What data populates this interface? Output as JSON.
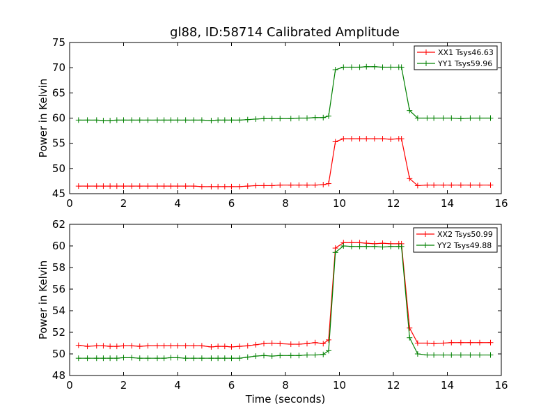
{
  "chart_data": [
    {
      "type": "line",
      "title": "gl88, ID:58714 Calibrated Amplitude",
      "xlabel": "",
      "ylabel": "Power in Kelvin",
      "xlim": [
        0,
        16
      ],
      "ylim": [
        45,
        75
      ],
      "xticks": [
        0,
        2,
        4,
        6,
        8,
        10,
        12,
        14,
        16
      ],
      "yticks": [
        45,
        50,
        55,
        60,
        65,
        70,
        75
      ],
      "legend_position": "top-right",
      "x": [
        0.33,
        0.66,
        1.0,
        1.25,
        1.5,
        1.75,
        2.0,
        2.3,
        2.6,
        2.9,
        3.25,
        3.5,
        3.75,
        4.0,
        4.3,
        4.6,
        4.9,
        5.25,
        5.5,
        5.75,
        6.0,
        6.3,
        6.6,
        6.9,
        7.2,
        7.5,
        7.8,
        8.2,
        8.5,
        8.8,
        9.1,
        9.4,
        9.6,
        9.85,
        10.15,
        10.45,
        10.75,
        11.0,
        11.3,
        11.6,
        11.9,
        12.2,
        12.3,
        12.6,
        12.9,
        13.25,
        13.5,
        13.85,
        14.15,
        14.5,
        14.85,
        15.2,
        15.6
      ],
      "series": [
        {
          "name": "XX1 Tsys46.63",
          "color": "#ff0000",
          "values": [
            46.5,
            46.5,
            46.5,
            46.5,
            46.5,
            46.5,
            46.5,
            46.5,
            46.5,
            46.5,
            46.5,
            46.5,
            46.5,
            46.5,
            46.5,
            46.5,
            46.4,
            46.4,
            46.4,
            46.4,
            46.4,
            46.4,
            46.5,
            46.6,
            46.6,
            46.6,
            46.7,
            46.7,
            46.7,
            46.7,
            46.7,
            46.8,
            47.0,
            55.3,
            55.9,
            55.9,
            55.9,
            55.9,
            55.9,
            55.9,
            55.8,
            55.9,
            55.9,
            48.0,
            46.6,
            46.7,
            46.7,
            46.7,
            46.7,
            46.7,
            46.7,
            46.7,
            46.7
          ]
        },
        {
          "name": "YY1 Tsys59.96",
          "color": "#008000",
          "values": [
            59.6,
            59.6,
            59.6,
            59.5,
            59.5,
            59.6,
            59.6,
            59.6,
            59.6,
            59.6,
            59.6,
            59.6,
            59.6,
            59.6,
            59.6,
            59.6,
            59.6,
            59.5,
            59.6,
            59.6,
            59.6,
            59.6,
            59.7,
            59.8,
            59.9,
            59.9,
            59.9,
            59.9,
            60.0,
            60.0,
            60.1,
            60.1,
            60.4,
            69.6,
            70.1,
            70.1,
            70.1,
            70.2,
            70.2,
            70.1,
            70.1,
            70.1,
            70.1,
            61.5,
            60.0,
            60.0,
            60.0,
            60.0,
            60.0,
            59.9,
            60.0,
            60.0,
            60.0
          ]
        }
      ]
    },
    {
      "type": "line",
      "title": "",
      "xlabel": "Time (seconds)",
      "ylabel": "Power in Kelvin",
      "xlim": [
        0,
        16
      ],
      "ylim": [
        48,
        62
      ],
      "xticks": [
        0,
        2,
        4,
        6,
        8,
        10,
        12,
        14,
        16
      ],
      "yticks": [
        48,
        50,
        52,
        54,
        56,
        58,
        60,
        62
      ],
      "legend_position": "top-right",
      "x": [
        0.33,
        0.66,
        1.0,
        1.25,
        1.5,
        1.75,
        2.0,
        2.3,
        2.6,
        2.9,
        3.25,
        3.5,
        3.75,
        4.0,
        4.3,
        4.6,
        4.9,
        5.25,
        5.5,
        5.75,
        6.0,
        6.3,
        6.6,
        6.9,
        7.2,
        7.5,
        7.8,
        8.2,
        8.5,
        8.8,
        9.1,
        9.4,
        9.6,
        9.85,
        10.15,
        10.45,
        10.75,
        11.0,
        11.3,
        11.6,
        11.9,
        12.2,
        12.3,
        12.6,
        12.9,
        13.25,
        13.5,
        13.85,
        14.15,
        14.5,
        14.85,
        15.2,
        15.6
      ],
      "series": [
        {
          "name": "XX2 Tsys50.99",
          "color": "#ff0000",
          "values": [
            50.8,
            50.7,
            50.75,
            50.75,
            50.7,
            50.7,
            50.75,
            50.75,
            50.7,
            50.75,
            50.75,
            50.75,
            50.75,
            50.75,
            50.75,
            50.75,
            50.75,
            50.65,
            50.7,
            50.7,
            50.65,
            50.7,
            50.75,
            50.85,
            50.95,
            51.0,
            50.95,
            50.9,
            50.9,
            50.95,
            51.05,
            50.95,
            51.3,
            59.8,
            60.3,
            60.3,
            60.3,
            60.25,
            60.2,
            60.25,
            60.2,
            60.2,
            60.2,
            52.4,
            51.0,
            51.0,
            50.95,
            51.0,
            51.05,
            51.05,
            51.05,
            51.05,
            51.05
          ]
        },
        {
          "name": "YY2 Tsys49.88",
          "color": "#008000",
          "values": [
            49.6,
            49.6,
            49.6,
            49.6,
            49.6,
            49.6,
            49.65,
            49.65,
            49.6,
            49.6,
            49.6,
            49.6,
            49.65,
            49.65,
            49.6,
            49.6,
            49.6,
            49.6,
            49.6,
            49.6,
            49.6,
            49.6,
            49.7,
            49.8,
            49.85,
            49.8,
            49.85,
            49.85,
            49.85,
            49.9,
            49.9,
            49.95,
            50.3,
            59.4,
            60.0,
            59.95,
            59.95,
            59.95,
            59.95,
            59.9,
            59.95,
            59.95,
            59.95,
            51.5,
            50.0,
            49.9,
            49.9,
            49.9,
            49.9,
            49.9,
            49.9,
            49.9,
            49.9
          ]
        }
      ]
    }
  ]
}
